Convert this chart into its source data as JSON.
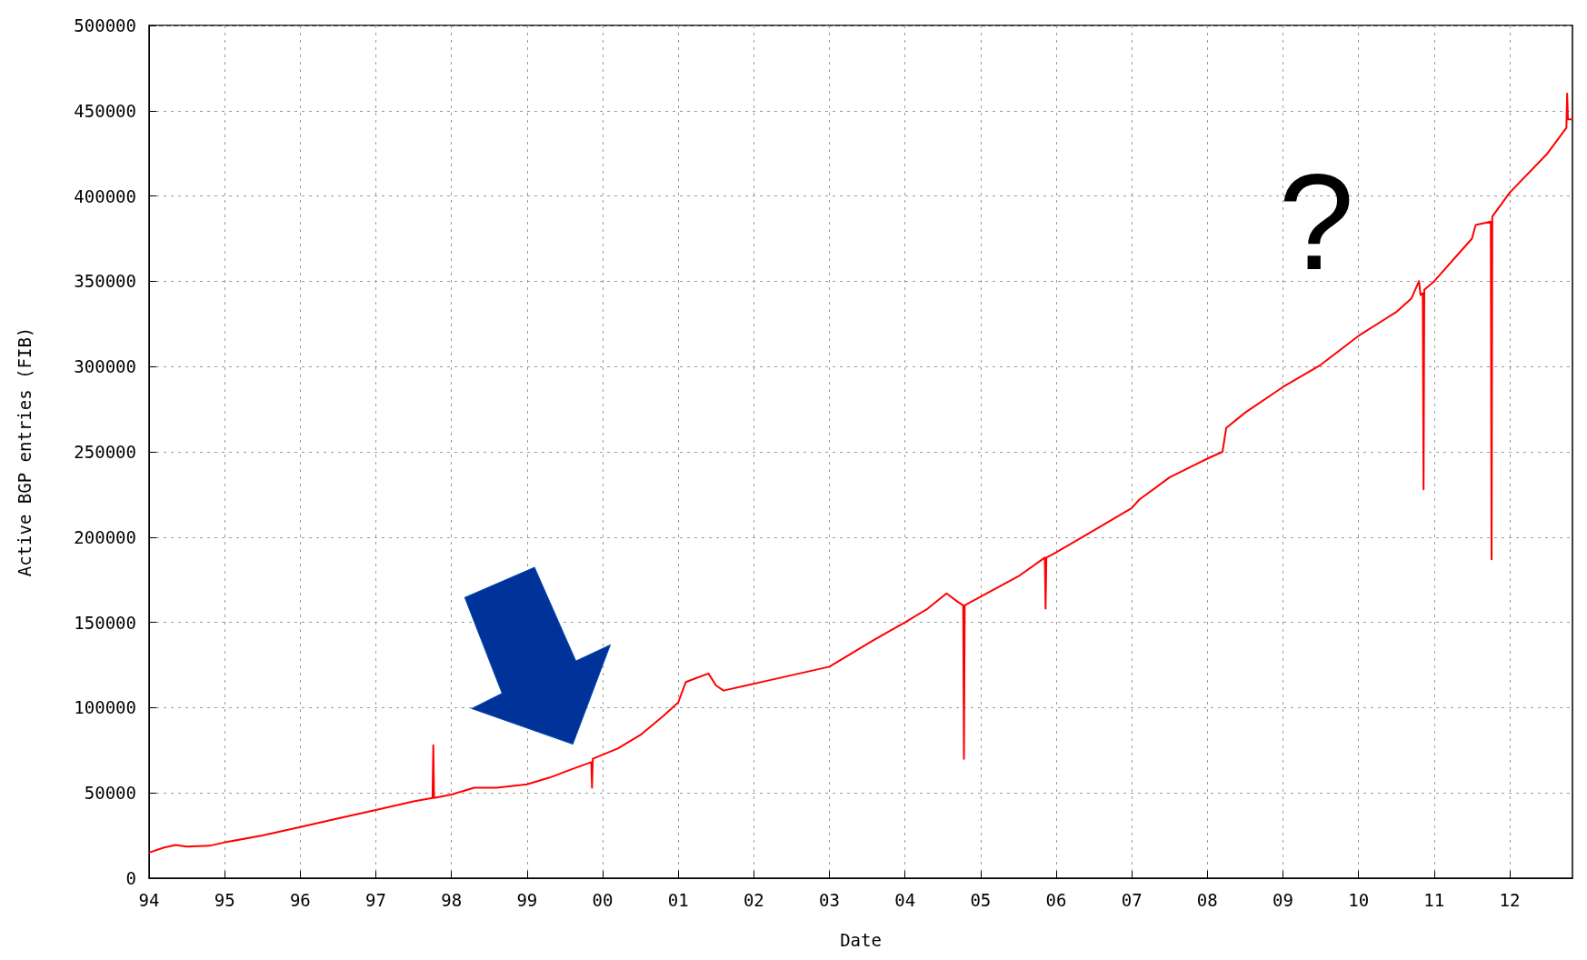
{
  "chart_data": {
    "type": "line",
    "xlabel": "Date",
    "ylabel": "Active BGP entries (FIB)",
    "annotations": [
      "?"
    ],
    "x": [
      1994.0,
      1994.2,
      1994.35,
      1994.5,
      1994.8,
      1995.0,
      1995.5,
      1996.0,
      1996.5,
      1997.0,
      1997.5,
      1997.75,
      1997.76,
      1997.77,
      1998.0,
      1998.3,
      1998.6,
      1999.0,
      1999.3,
      1999.6,
      1999.85,
      1999.86,
      1999.87,
      2000.2,
      2000.5,
      2000.8,
      2001.0,
      2001.1,
      2001.4,
      2001.5,
      2001.6,
      2001.9,
      2002.2,
      2002.6,
      2003.0,
      2003.3,
      2003.6,
      2004.0,
      2004.3,
      2004.55,
      2004.7,
      2004.77,
      2004.78,
      2004.79,
      2005.0,
      2005.5,
      2005.85,
      2005.86,
      2005.87,
      2006.0,
      2006.5,
      2007.0,
      2007.1,
      2007.5,
      2008.0,
      2008.2,
      2008.25,
      2008.5,
      2009.0,
      2009.5,
      2010.0,
      2010.5,
      2010.7,
      2010.8,
      2010.82,
      2010.85,
      2010.86,
      2010.87,
      2011.0,
      2011.3,
      2011.5,
      2011.55,
      2011.75,
      2011.76,
      2011.77,
      2012.0,
      2012.5,
      2012.75,
      2012.76,
      2012.77,
      2012.83
    ],
    "series": [
      {
        "color": "#ff0000",
        "values": [
          15000,
          18000,
          19500,
          18500,
          19000,
          21000,
          25000,
          30000,
          35000,
          40000,
          45000,
          47000,
          78000,
          47000,
          49000,
          53000,
          53000,
          55000,
          59000,
          64000,
          68000,
          53000,
          70000,
          76000,
          84000,
          95000,
          103000,
          115000,
          120000,
          113000,
          110000,
          113000,
          116000,
          120000,
          124000,
          132000,
          140000,
          150000,
          158000,
          167000,
          162000,
          160000,
          70000,
          160000,
          165000,
          177000,
          188000,
          158000,
          188000,
          191000,
          204000,
          217000,
          222000,
          235000,
          246000,
          250000,
          264000,
          273000,
          288000,
          301000,
          318000,
          332000,
          340000,
          350000,
          342000,
          343000,
          228000,
          345000,
          350000,
          365000,
          375000,
          383000,
          385000,
          187000,
          388000,
          402000,
          425000,
          440000,
          460000,
          445000,
          445000
        ]
      }
    ],
    "xlim": [
      1994,
      2012.83
    ],
    "xticks": [
      {
        "value": 1994,
        "label": "94"
      },
      {
        "value": 1995,
        "label": "95"
      },
      {
        "value": 1996,
        "label": "96"
      },
      {
        "value": 1997,
        "label": "97"
      },
      {
        "value": 1998,
        "label": "98"
      },
      {
        "value": 1999,
        "label": "99"
      },
      {
        "value": 2000,
        "label": "00"
      },
      {
        "value": 2001,
        "label": "01"
      },
      {
        "value": 2002,
        "label": "02"
      },
      {
        "value": 2003,
        "label": "03"
      },
      {
        "value": 2004,
        "label": "04"
      },
      {
        "value": 2005,
        "label": "05"
      },
      {
        "value": 2006,
        "label": "06"
      },
      {
        "value": 2007,
        "label": "07"
      },
      {
        "value": 2008,
        "label": "08"
      },
      {
        "value": 2009,
        "label": "09"
      },
      {
        "value": 2010,
        "label": "10"
      },
      {
        "value": 2011,
        "label": "11"
      },
      {
        "value": 2012,
        "label": "12"
      }
    ],
    "ylim": [
      0,
      500000
    ],
    "yticks": [
      0,
      50000,
      100000,
      150000,
      200000,
      250000,
      300000,
      350000,
      400000,
      450000,
      500000
    ],
    "grid": true,
    "marker": "none",
    "line_style": "solid"
  }
}
